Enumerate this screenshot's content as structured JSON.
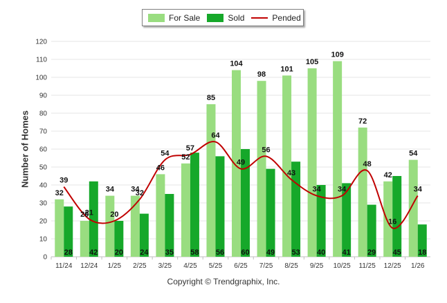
{
  "chart_data": {
    "type": "bar",
    "title": "",
    "ylabel": "Number of Homes",
    "xlabel": "",
    "ylim": [
      0,
      120
    ],
    "yticks": [
      0,
      10,
      20,
      30,
      40,
      50,
      60,
      70,
      80,
      90,
      100,
      110,
      120
    ],
    "categories": [
      "11/24",
      "12/24",
      "1/25",
      "2/25",
      "3/25",
      "4/25",
      "5/25",
      "6/25",
      "7/25",
      "8/25",
      "9/25",
      "10/25",
      "11/25",
      "12/25",
      "1/26"
    ],
    "series": [
      {
        "name": "For Sale",
        "kind": "bar",
        "color": "#99dd80",
        "values": [
          32,
          20,
          34,
          34,
          46,
          52,
          85,
          104,
          98,
          101,
          105,
          109,
          72,
          42,
          54
        ]
      },
      {
        "name": "Sold",
        "kind": "bar",
        "color": "#16a82a",
        "values": [
          28,
          42,
          20,
          24,
          35,
          58,
          56,
          60,
          49,
          53,
          40,
          41,
          29,
          45,
          18
        ]
      },
      {
        "name": "Pended",
        "kind": "line",
        "color": "#c00000",
        "values": [
          39,
          21,
          20,
          32,
          54,
          57,
          64,
          49,
          56,
          43,
          34,
          34,
          48,
          16,
          34
        ]
      }
    ],
    "legend": "top-center",
    "grid": true
  },
  "legend": {
    "for_sale": "For Sale",
    "sold": "Sold",
    "pended": "Pended"
  },
  "footer": {
    "copyright": "Copyright © Trendgraphix, Inc."
  }
}
